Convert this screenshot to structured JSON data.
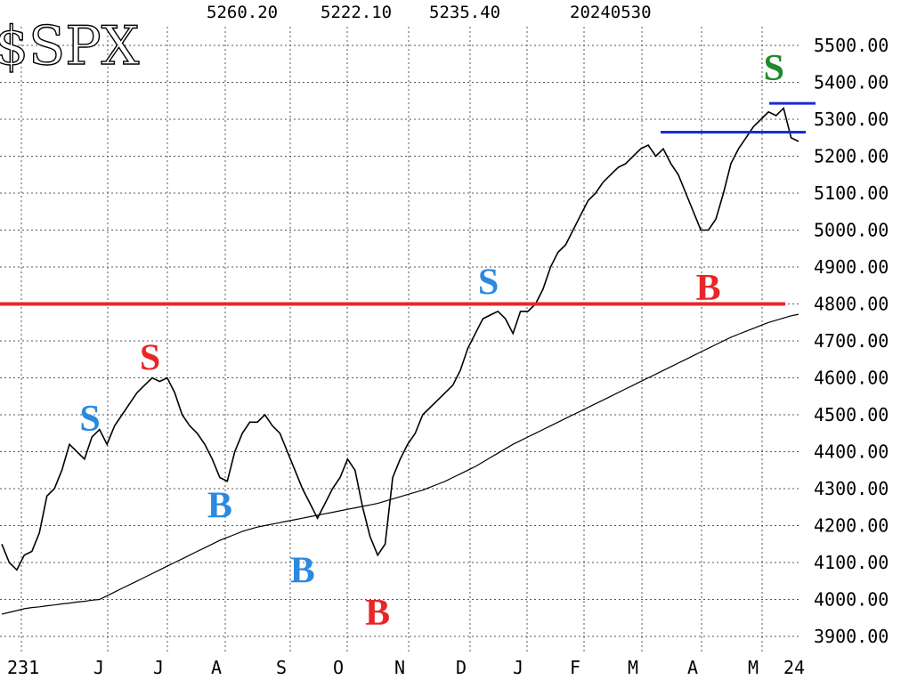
{
  "chart_data": {
    "type": "line",
    "title": "$SPX",
    "header": {
      "high": "5260.20",
      "low": "5222.10",
      "close": "5235.40",
      "date": "20240530"
    },
    "y_ticks": [
      "3900.00",
      "4000.00",
      "4100.00",
      "4200.00",
      "4300.00",
      "4400.00",
      "4500.00",
      "4600.00",
      "4700.00",
      "4800.00",
      "4900.00",
      "5000.00",
      "5100.00",
      "5200.00",
      "5300.00",
      "5400.00",
      "5500.00"
    ],
    "ylim": [
      3880,
      5560
    ],
    "x_ticks": [
      "231",
      "J",
      "J",
      "A",
      "S",
      "O",
      "N",
      "D",
      "J",
      "F",
      "M",
      "A",
      "M",
      "24"
    ],
    "grid": true,
    "series": [
      {
        "values": [
          4150,
          4100,
          4080,
          4120,
          4130,
          4180,
          4280,
          4300,
          4350,
          4420,
          4400,
          4380,
          4440,
          4460,
          4420,
          4470,
          4500,
          4530,
          4560,
          4580,
          4600,
          4590,
          4600,
          4560,
          4500,
          4470,
          4450,
          4420,
          4380,
          4330,
          4320,
          4400,
          4450,
          4480,
          4480,
          4500,
          4470,
          4450,
          4400,
          4350,
          4300,
          4260,
          4220,
          4260,
          4300,
          4330,
          4380,
          4350,
          4250,
          4170,
          4120,
          4150,
          4330,
          4380,
          4420,
          4450,
          4500,
          4520,
          4540,
          4560,
          4580,
          4620,
          4680,
          4720,
          4760,
          4770,
          4780,
          4760,
          4720,
          4780,
          4780,
          4800,
          4840,
          4900,
          4940,
          4960,
          5000,
          5040,
          5080,
          5100,
          5130,
          5150,
          5170,
          5180,
          5200,
          5220,
          5230,
          5200,
          5220,
          5180,
          5150,
          5100,
          5050,
          5000,
          5000,
          5030,
          5100,
          5180,
          5220,
          5250,
          5280,
          5300,
          5320,
          5310,
          5330,
          5250,
          5240
        ]
      },
      {
        "values": [
          3960,
          3965,
          3970,
          3975,
          3978,
          3980,
          3983,
          3985,
          3988,
          3990,
          3993,
          3995,
          3998,
          4000,
          4010,
          4020,
          4030,
          4040,
          4050,
          4060,
          4070,
          4080,
          4090,
          4100,
          4110,
          4120,
          4130,
          4140,
          4150,
          4160,
          4168,
          4176,
          4184,
          4190,
          4196,
          4200,
          4204,
          4208,
          4212,
          4216,
          4220,
          4224,
          4228,
          4232,
          4236,
          4240,
          4244,
          4248,
          4252,
          4256,
          4260,
          4266,
          4272,
          4278,
          4284,
          4290,
          4296,
          4304,
          4312,
          4320,
          4330,
          4340,
          4350,
          4360,
          4372,
          4384,
          4396,
          4408,
          4420,
          4430,
          4440,
          4450,
          4460,
          4470,
          4480,
          4490,
          4500,
          4510,
          4520,
          4530,
          4540,
          4550,
          4560,
          4570,
          4580,
          4590,
          4600,
          4610,
          4620,
          4630,
          4640,
          4650,
          4660,
          4670,
          4680,
          4690,
          4700,
          4710,
          4718,
          4726,
          4734,
          4742,
          4750,
          4756,
          4762,
          4768,
          4772
        ]
      }
    ],
    "horizontal_lines": [
      {
        "value": 4800,
        "color": "#e8262a"
      },
      {
        "value": 5265,
        "color": "#1a2bd8"
      },
      {
        "value": 5343,
        "color": "#1a2bd8"
      }
    ],
    "annotations": [
      {
        "text": "S",
        "color": "#2a8ae0",
        "x_index": 12,
        "value": 4490
      },
      {
        "text": "S",
        "color": "#e8262a",
        "x_index": 20,
        "value": 4655
      },
      {
        "text": "B",
        "color": "#2a8ae0",
        "x_index": 29,
        "value": 4255
      },
      {
        "text": "B",
        "color": "#2a8ae0",
        "x_index": 40,
        "value": 4080
      },
      {
        "text": "B",
        "color": "#e8262a",
        "x_index": 50,
        "value": 3965
      },
      {
        "text": "S",
        "color": "#2a8ae0",
        "x_index": 65,
        "value": 4860
      },
      {
        "text": "B",
        "color": "#e8262a",
        "x_index": 94,
        "value": 4845
      },
      {
        "text": "S",
        "color": "#1f8a2a",
        "x_index": 103,
        "value": 5440
      }
    ]
  }
}
